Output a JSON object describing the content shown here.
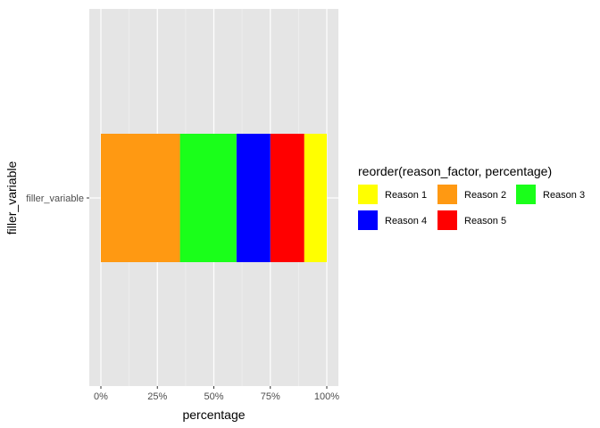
{
  "chart_data": {
    "type": "bar",
    "orientation": "horizontal",
    "stacked": true,
    "categories": [
      "filler_variable"
    ],
    "series": [
      {
        "name": "Reason 1",
        "color": "#FFFF00",
        "values": [
          0.1
        ]
      },
      {
        "name": "Reason 5",
        "color": "#FF0000",
        "values": [
          0.15
        ]
      },
      {
        "name": "Reason 4",
        "color": "#0000FF",
        "values": [
          0.15
        ]
      },
      {
        "name": "Reason 3",
        "color": "#1AFF1A",
        "values": [
          0.25
        ]
      },
      {
        "name": "Reason 2",
        "color": "#FF9912",
        "values": [
          0.35
        ]
      }
    ],
    "xlabel": "percentage",
    "ylabel": "filler_variable",
    "xlim": [
      0,
      1
    ],
    "x_ticks": [
      {
        "value": 0,
        "label": "0%"
      },
      {
        "value": 0.25,
        "label": "25%"
      },
      {
        "value": 0.5,
        "label": "50%"
      },
      {
        "value": 0.75,
        "label": "75%"
      },
      {
        "value": 1,
        "label": "100%"
      }
    ],
    "grid": true,
    "panel_background": "#E5E5E5",
    "legend": {
      "title": "reorder(reason_factor, percentage)",
      "placement": "right",
      "entries": [
        {
          "label": "Reason 1",
          "color": "#FFFF00"
        },
        {
          "label": "Reason 2",
          "color": "#FF9912"
        },
        {
          "label": "Reason 3",
          "color": "#1AFF1A"
        },
        {
          "label": "Reason 4",
          "color": "#0000FF"
        },
        {
          "label": "Reason 5",
          "color": "#FF0000"
        }
      ]
    }
  }
}
